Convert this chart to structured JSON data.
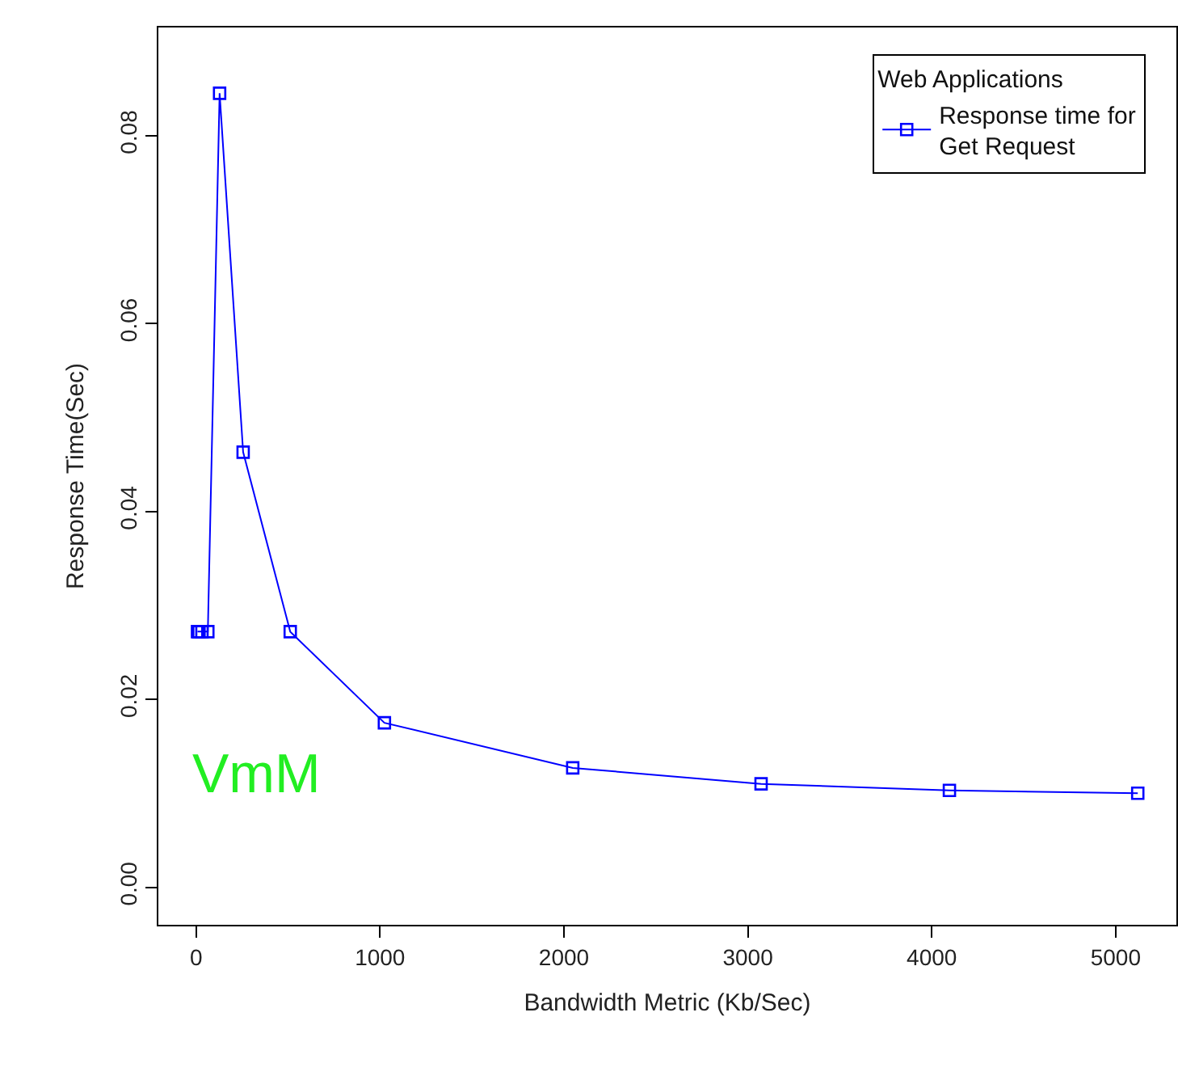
{
  "chart_data": {
    "type": "line",
    "xlabel": "Bandwidth Metric (Kb/Sec)",
    "ylabel": "Response Time(Sec)",
    "legend_title": "Web Applications",
    "x": [
      8,
      16,
      32,
      64,
      128,
      256,
      512,
      1024,
      2048,
      3072,
      4096,
      5120
    ],
    "series": [
      {
        "name": "Response time for\nGet Request",
        "color": "#0000ff",
        "values": [
          0.0272,
          0.0272,
          0.0272,
          0.0272,
          0.0845,
          0.0463,
          0.0272,
          0.0175,
          0.0127,
          0.011,
          0.0103,
          0.01
        ]
      }
    ],
    "xlim": [
      -205,
      5330
    ],
    "xticks": [
      0,
      1000,
      2000,
      3000,
      4000,
      5000
    ],
    "ylim": [
      -0.004,
      0.0915
    ],
    "yticks": [
      {
        "value": 0,
        "label": "0.00"
      },
      {
        "value": 0.02,
        "label": "0.02"
      },
      {
        "value": 0.04,
        "label": "0.04"
      },
      {
        "value": 0.06,
        "label": "0.06"
      },
      {
        "value": 0.08,
        "label": "0.08"
      }
    ],
    "annotations": [
      "VmM"
    ],
    "marker": "square",
    "line_style": "solid",
    "legend": "top right"
  }
}
